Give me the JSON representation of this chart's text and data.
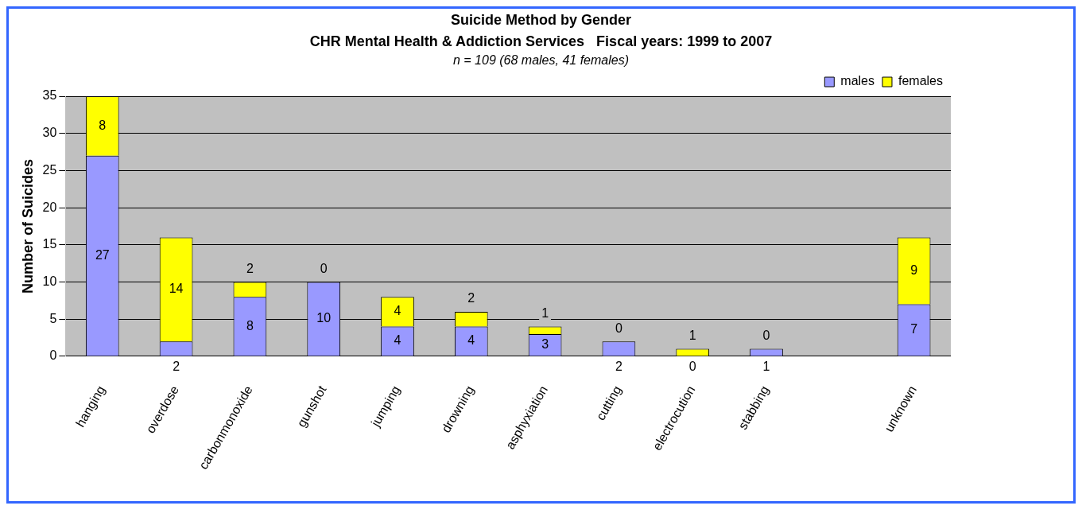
{
  "chart_data": {
    "type": "bar",
    "title": "Suicide Method by Gender",
    "subtitle": "CHR Mental Health & Addiction Services   Fiscal years: 1999 to 2007",
    "annotations": [
      "n = 109 (68 males, 41 females)"
    ],
    "ylabel": "Number of Suicides",
    "categories": [
      "hanging",
      "overdose",
      "carbonmonoxide",
      "gunshot",
      "jumping",
      "drowning",
      "asphyxiation",
      "cutting",
      "electrocution",
      "stabbing",
      null,
      "unknown"
    ],
    "series": [
      {
        "name": "males",
        "color": "#9999ff",
        "values": [
          27,
          2,
          8,
          10,
          4,
          4,
          3,
          2,
          0,
          1,
          null,
          7
        ]
      },
      {
        "name": "females",
        "color": "#ffff00",
        "values": [
          8,
          14,
          2,
          0,
          4,
          2,
          1,
          0,
          1,
          0,
          null,
          9
        ]
      }
    ],
    "stacked": true,
    "ylim": [
      0,
      35
    ],
    "yticks": [
      0,
      5,
      10,
      15,
      20,
      25,
      30,
      35
    ],
    "grid": "y",
    "legend": "top right",
    "data_labels": true
  }
}
